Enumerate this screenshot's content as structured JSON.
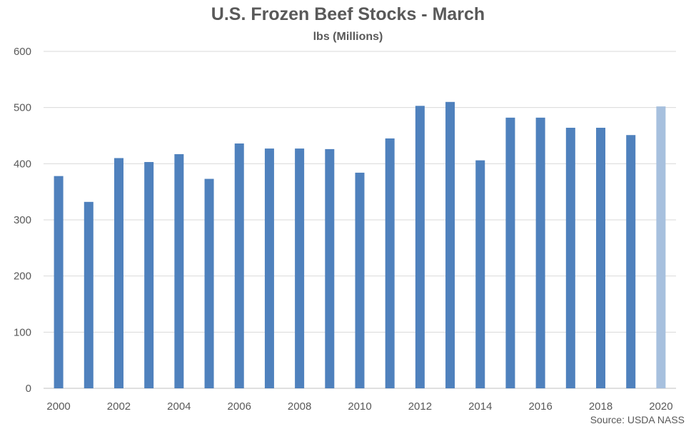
{
  "chart_data": {
    "type": "bar",
    "title": "U.S. Frozen Beef Stocks - March",
    "subtitle": "lbs (Millions)",
    "source": "Source: USDA NASS",
    "categories": [
      "2000",
      "2001",
      "2002",
      "2003",
      "2004",
      "2005",
      "2006",
      "2007",
      "2008",
      "2009",
      "2010",
      "2011",
      "2012",
      "2013",
      "2014",
      "2015",
      "2016",
      "2017",
      "2018",
      "2019",
      "2020"
    ],
    "x_tick_labels": [
      "2000",
      "2002",
      "2004",
      "2006",
      "2008",
      "2010",
      "2012",
      "2014",
      "2016",
      "2018",
      "2020"
    ],
    "values": [
      378,
      332,
      410,
      403,
      417,
      373,
      436,
      427,
      427,
      426,
      384,
      445,
      503,
      510,
      406,
      482,
      482,
      464,
      464,
      451,
      502
    ],
    "ylim": [
      0,
      600
    ],
    "y_ticks": [
      0,
      100,
      200,
      300,
      400,
      500,
      600
    ],
    "grid": true,
    "colors": {
      "bar": "#4f81bd",
      "highlight": "#a7c0de",
      "grid": "#d9d9d9"
    },
    "highlight_category": "2020"
  }
}
